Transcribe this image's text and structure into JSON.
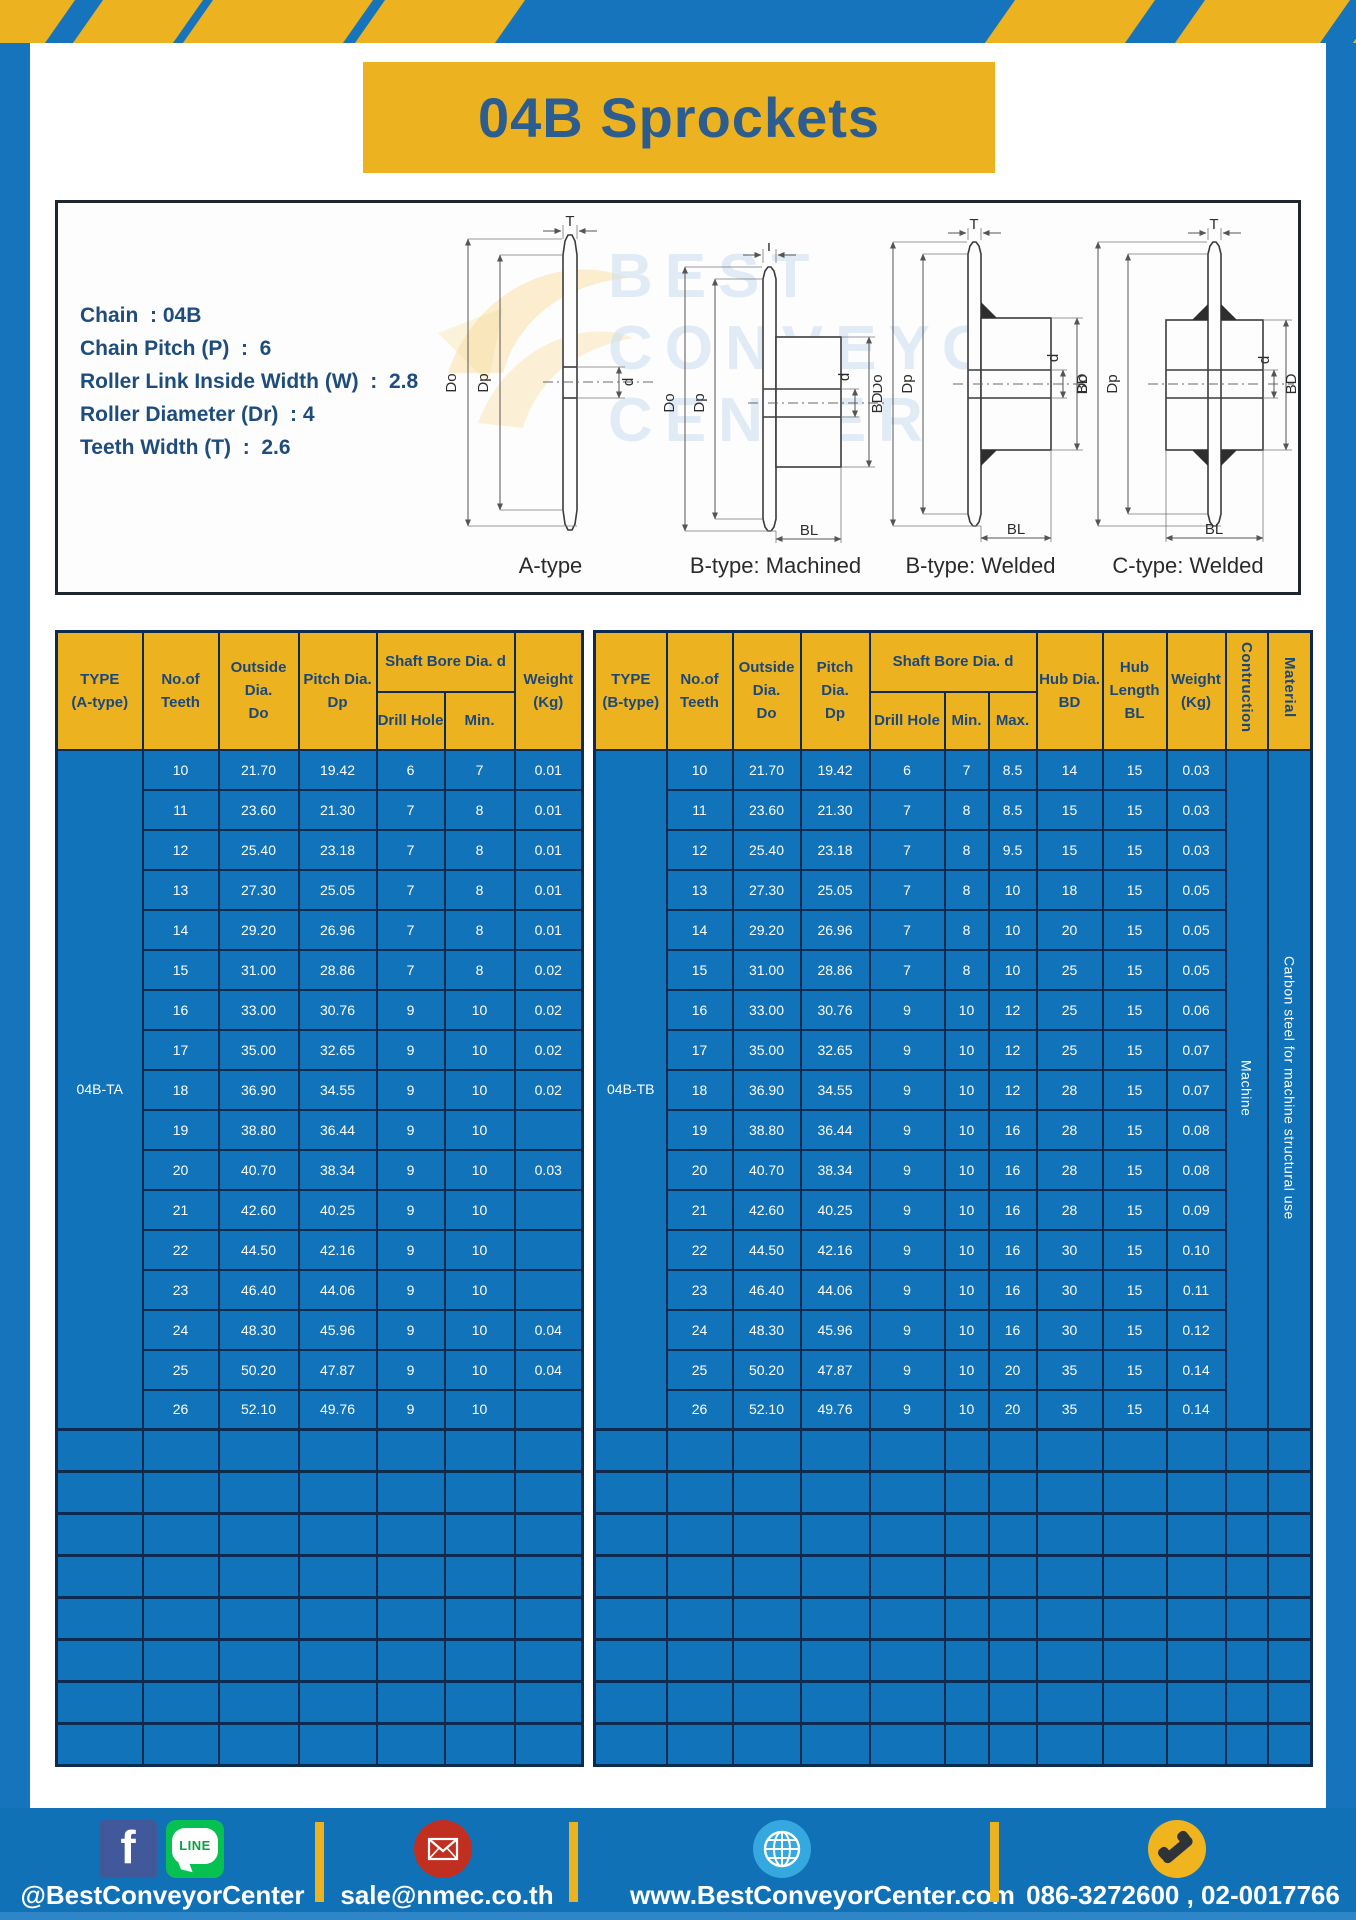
{
  "colors": {
    "band_blue": "#1574bc",
    "accent_yellow": "#ecb220",
    "cell_blue": "#1173ba",
    "border_navy": "#0d2b50",
    "header_text_navy": "#1c4879",
    "title_text_navy": "#2d5d8f",
    "footer_blue": "#1171b7"
  },
  "title": "04B Sprockets",
  "specs": {
    "lines": [
      "Chain  : 04B",
      "Chain Pitch (P)  :  6",
      "Roller Link Inside Width (W)  :  2.8",
      "Roller Diameter (Dr)  : 4",
      "Teeth Width (T)  :  2.6"
    ]
  },
  "watermark": {
    "lines": [
      "BEST",
      "CONVEYOR",
      "CENTER"
    ]
  },
  "drawings": {
    "captions": [
      "A-type",
      "B-type: Machined",
      "B-type: Welded",
      "C-type: Welded"
    ],
    "labels": {
      "T": "T",
      "Do": "Do",
      "Dp": "Dp",
      "d": "d",
      "BD": "BD",
      "BL": "BL"
    }
  },
  "tables": {
    "left": {
      "type_header": "TYPE\n(A-type)",
      "col_teeth": "No.of\nTeeth",
      "col_outside": "Outside\nDia.\nDo",
      "col_pitch": "Pitch Dia.\nDp",
      "col_shaft_bore": "Shaft Bore Dia. d",
      "col_drill": "Drill Hole",
      "col_min": "Min.",
      "col_weight": "Weight\n(Kg)",
      "type_value": "04B-TA",
      "rows": [
        [
          "10",
          "21.70",
          "19.42",
          "6",
          "7",
          "0.01"
        ],
        [
          "11",
          "23.60",
          "21.30",
          "7",
          "8",
          "0.01"
        ],
        [
          "12",
          "25.40",
          "23.18",
          "7",
          "8",
          "0.01"
        ],
        [
          "13",
          "27.30",
          "25.05",
          "7",
          "8",
          "0.01"
        ],
        [
          "14",
          "29.20",
          "26.96",
          "7",
          "8",
          "0.01"
        ],
        [
          "15",
          "31.00",
          "28.86",
          "7",
          "8",
          "0.02"
        ],
        [
          "16",
          "33.00",
          "30.76",
          "9",
          "10",
          "0.02"
        ],
        [
          "17",
          "35.00",
          "32.65",
          "9",
          "10",
          "0.02"
        ],
        [
          "18",
          "36.90",
          "34.55",
          "9",
          "10",
          "0.02"
        ],
        [
          "19",
          "38.80",
          "36.44",
          "9",
          "10",
          ""
        ],
        [
          "20",
          "40.70",
          "38.34",
          "9",
          "10",
          "0.03"
        ],
        [
          "21",
          "42.60",
          "40.25",
          "9",
          "10",
          ""
        ],
        [
          "22",
          "44.50",
          "42.16",
          "9",
          "10",
          ""
        ],
        [
          "23",
          "46.40",
          "44.06",
          "9",
          "10",
          ""
        ],
        [
          "24",
          "48.30",
          "45.96",
          "9",
          "10",
          "0.04"
        ],
        [
          "25",
          "50.20",
          "47.87",
          "9",
          "10",
          "0.04"
        ],
        [
          "26",
          "52.10",
          "49.76",
          "9",
          "10",
          ""
        ]
      ],
      "empty_rows": 8
    },
    "right": {
      "type_header": "TYPE\n(B-type)",
      "col_teeth": "No.of\nTeeth",
      "col_outside": "Outside\nDia.\nDo",
      "col_pitch": "Pitch Dia.\nDp",
      "col_shaft_bore": "Shaft Bore Dia. d",
      "col_drill": "Drill Hole",
      "col_min": "Min.",
      "col_max": "Max.",
      "col_hub_dia": "Hub Dia.\nBD",
      "col_hub_len": "Hub\nLength\nBL",
      "col_weight": "Weight\n(Kg)",
      "col_construction": "Contruction",
      "col_material": "Material",
      "type_value": "04B-TB",
      "construction_value": "Machine",
      "material_value": "Carbon steel for machine structural use",
      "rows": [
        [
          "10",
          "21.70",
          "19.42",
          "6",
          "7",
          "8.5",
          "14",
          "15",
          "0.03"
        ],
        [
          "11",
          "23.60",
          "21.30",
          "7",
          "8",
          "8.5",
          "15",
          "15",
          "0.03"
        ],
        [
          "12",
          "25.40",
          "23.18",
          "7",
          "8",
          "9.5",
          "15",
          "15",
          "0.03"
        ],
        [
          "13",
          "27.30",
          "25.05",
          "7",
          "8",
          "10",
          "18",
          "15",
          "0.05"
        ],
        [
          "14",
          "29.20",
          "26.96",
          "7",
          "8",
          "10",
          "20",
          "15",
          "0.05"
        ],
        [
          "15",
          "31.00",
          "28.86",
          "7",
          "8",
          "10",
          "25",
          "15",
          "0.05"
        ],
        [
          "16",
          "33.00",
          "30.76",
          "9",
          "10",
          "12",
          "25",
          "15",
          "0.06"
        ],
        [
          "17",
          "35.00",
          "32.65",
          "9",
          "10",
          "12",
          "25",
          "15",
          "0.07"
        ],
        [
          "18",
          "36.90",
          "34.55",
          "9",
          "10",
          "12",
          "28",
          "15",
          "0.07"
        ],
        [
          "19",
          "38.80",
          "36.44",
          "9",
          "10",
          "16",
          "28",
          "15",
          "0.08"
        ],
        [
          "20",
          "40.70",
          "38.34",
          "9",
          "10",
          "16",
          "28",
          "15",
          "0.08"
        ],
        [
          "21",
          "42.60",
          "40.25",
          "9",
          "10",
          "16",
          "28",
          "15",
          "0.09"
        ],
        [
          "22",
          "44.50",
          "42.16",
          "9",
          "10",
          "16",
          "30",
          "15",
          "0.10"
        ],
        [
          "23",
          "46.40",
          "44.06",
          "9",
          "10",
          "16",
          "30",
          "15",
          "0.11"
        ],
        [
          "24",
          "48.30",
          "45.96",
          "9",
          "10",
          "16",
          "30",
          "15",
          "0.12"
        ],
        [
          "25",
          "50.20",
          "47.87",
          "9",
          "10",
          "20",
          "35",
          "15",
          "0.14"
        ],
        [
          "26",
          "52.10",
          "49.76",
          "9",
          "10",
          "20",
          "35",
          "15",
          "0.14"
        ]
      ],
      "empty_rows": 8
    }
  },
  "footer": {
    "facebook_letter": "f",
    "line_label": "LINE",
    "social_handle": "@BestConveyorCenter",
    "email": "sale@nmec.co.th",
    "website": "www.BestConveyorCenter.com",
    "phones": "086-3272600 , 02-0017766"
  }
}
